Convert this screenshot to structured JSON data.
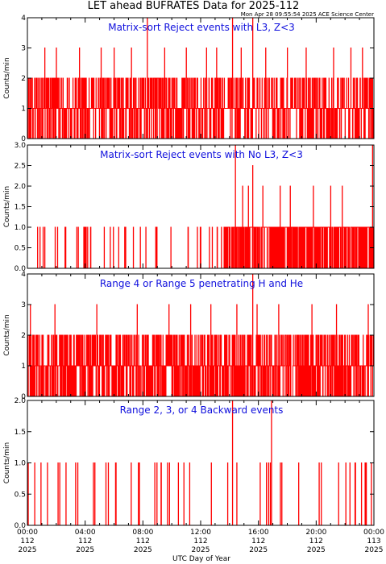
{
  "header": {
    "title": "LET ahead BUFRATES Data for 2025-112",
    "timestamp": "Mon Apr 28 09:55:54 2025 ACE Science Center"
  },
  "colors": {
    "series": "#ff0000",
    "panel_title": "#1010dd",
    "axes": "#000000"
  },
  "chart_data": [
    {
      "type": "line",
      "title": "Matrix-sort Reject events with L3, Z<3",
      "ylabel": "Counts/min",
      "ylim": [
        0,
        4
      ],
      "yticks": [
        "0",
        "1",
        "2",
        "3",
        "4"
      ],
      "level_hint": 0,
      "spikes": [
        [
          1.2,
          3
        ],
        [
          2.0,
          3
        ],
        [
          3.6,
          3
        ],
        [
          5.1,
          3
        ],
        [
          6.0,
          3
        ],
        [
          7.2,
          3
        ],
        [
          8.3,
          4
        ],
        [
          9.5,
          3
        ],
        [
          11.0,
          3
        ],
        [
          12.4,
          3
        ],
        [
          13.1,
          3
        ],
        [
          14.2,
          4
        ],
        [
          14.8,
          3
        ],
        [
          15.6,
          4
        ],
        [
          16.5,
          3
        ],
        [
          18.0,
          3
        ],
        [
          19.3,
          3
        ],
        [
          21.2,
          3
        ],
        [
          22.4,
          3
        ],
        [
          23.2,
          3
        ]
      ]
    },
    {
      "type": "line",
      "title": "Matrix-sort Reject events with No L3, Z<3",
      "ylabel": "Counts/min",
      "ylim": [
        0,
        3
      ],
      "yticks": [
        "0.0",
        "0.5",
        "1.0",
        "1.5",
        "2.0",
        "2.5",
        "3.0"
      ],
      "level_hint": 1,
      "spikes": [
        [
          14.4,
          3
        ],
        [
          14.9,
          2
        ],
        [
          15.3,
          2
        ],
        [
          15.6,
          2.5
        ],
        [
          16.3,
          2
        ],
        [
          17.5,
          2
        ],
        [
          18.2,
          2
        ],
        [
          19.8,
          2
        ],
        [
          21.0,
          2
        ],
        [
          21.8,
          2
        ],
        [
          23.9,
          3
        ]
      ]
    },
    {
      "type": "line",
      "title": "Range 4 or Range 5 penetrating H and He",
      "ylabel": "Counts/min",
      "ylim": [
        0,
        4
      ],
      "yticks": [
        "0",
        "1",
        "2",
        "3",
        "4"
      ],
      "level_hint": 2,
      "spikes": [
        [
          0.2,
          3
        ],
        [
          1.9,
          3
        ],
        [
          4.8,
          3
        ],
        [
          7.6,
          3
        ],
        [
          9.8,
          3
        ],
        [
          11.3,
          3
        ],
        [
          12.7,
          3
        ],
        [
          14.5,
          3
        ],
        [
          15.6,
          4
        ],
        [
          15.9,
          3
        ],
        [
          17.4,
          3
        ],
        [
          19.7,
          3
        ],
        [
          21.4,
          3
        ],
        [
          23.6,
          3
        ]
      ]
    },
    {
      "type": "line",
      "title": "Range 2, 3, or 4 Backward events",
      "ylabel": "Counts/min",
      "ylim": [
        0,
        2
      ],
      "yticks": [
        "0.0",
        "0.5",
        "1.0",
        "1.5",
        "2.0"
      ],
      "level_hint": 3,
      "spikes": [
        [
          14.2,
          2
        ],
        [
          16.9,
          2
        ]
      ]
    }
  ],
  "xaxis": {
    "label": "UTC Day of Year",
    "ticks": [
      {
        "time": "00:00",
        "day": "112",
        "year": "2025"
      },
      {
        "time": "04:00",
        "day": "112",
        "year": "2025"
      },
      {
        "time": "08:00",
        "day": "112",
        "year": "2025"
      },
      {
        "time": "12:00",
        "day": "112",
        "year": "2025"
      },
      {
        "time": "16:00",
        "day": "112",
        "year": "2025"
      },
      {
        "time": "20:00",
        "day": "112",
        "year": "2025"
      },
      {
        "time": "00:00",
        "day": "113",
        "year": "2025"
      }
    ],
    "range_hours": [
      0,
      24
    ]
  }
}
